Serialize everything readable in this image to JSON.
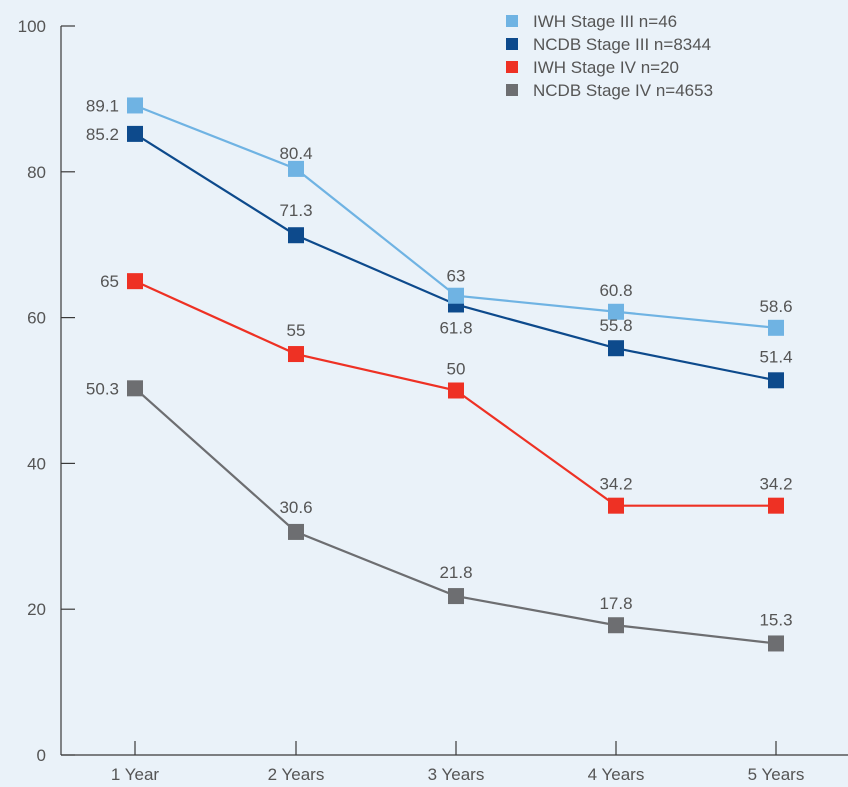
{
  "chart_data": {
    "type": "line",
    "categories": [
      "1 Year",
      "2 Years",
      "3 Years",
      "4 Years",
      "5 Years"
    ],
    "ylim": [
      0,
      100
    ],
    "yticks": [
      0,
      20,
      40,
      60,
      80,
      100
    ],
    "grid": false,
    "legend_position": "top-right",
    "series": [
      {
        "name": "IWH Stage III n=46",
        "color": "#6fb3e3",
        "values": [
          89.1,
          80.4,
          63,
          60.8,
          58.6
        ],
        "labels": [
          "89.1",
          "80.4",
          "63",
          "60.8",
          "58.6"
        ]
      },
      {
        "name": "NCDB Stage III n=8344",
        "color": "#0d4a8c",
        "values": [
          85.2,
          71.3,
          61.8,
          55.8,
          51.4
        ],
        "labels": [
          "85.2",
          "71.3",
          "61.8",
          "55.8",
          "51.4"
        ]
      },
      {
        "name": "IWH Stage IV n=20",
        "color": "#ee3124",
        "values": [
          65,
          55,
          50,
          34.2,
          34.2
        ],
        "labels": [
          "65",
          "55",
          "50",
          "34.2",
          "34.2"
        ]
      },
      {
        "name": "NCDB Stage IV n=4653",
        "color": "#6d6e71",
        "values": [
          50.3,
          30.6,
          21.8,
          17.8,
          15.3
        ],
        "labels": [
          "50.3",
          "30.6",
          "21.8",
          "17.8",
          "15.3"
        ]
      }
    ]
  }
}
